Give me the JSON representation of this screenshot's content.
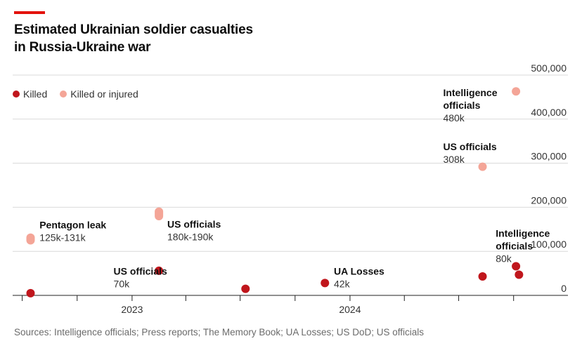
{
  "header": {
    "title_line1": "Estimated Ukrainian soldier casualties",
    "title_line2": "in Russia-Ukraine war"
  },
  "legend": {
    "killed_label": "Killed",
    "injured_label": "Killed or injured"
  },
  "source": "Sources: Intelligence officials; Press reports; The Memory Book; UA Losses; US DoD; US officials",
  "colors": {
    "accent": "#e3120b",
    "killed": "#c0161c",
    "injured": "#f4a597",
    "grid": "#d9d9d9",
    "axis": "#222222"
  },
  "chart_data": {
    "type": "scatter",
    "title": "Estimated Ukrainian soldier casualties in Russia-Ukraine war",
    "ylim": [
      0,
      500000
    ],
    "yticks": [
      {
        "value": 0,
        "label": "0"
      },
      {
        "value": 100000,
        "label": "100,000"
      },
      {
        "value": 200000,
        "label": "200,000"
      },
      {
        "value": 300000,
        "label": "300,000"
      },
      {
        "value": 400000,
        "label": "400,000"
      },
      {
        "value": 500000,
        "label": "500,000"
      }
    ],
    "xlim": [
      "2022-06-15",
      "2024-12-31"
    ],
    "xticks": [
      {
        "date": "2022-07-01",
        "label": ""
      },
      {
        "date": "2022-10-01",
        "label": ""
      },
      {
        "date": "2023-01-01",
        "label": "2023"
      },
      {
        "date": "2023-04-01",
        "label": ""
      },
      {
        "date": "2023-07-01",
        "label": ""
      },
      {
        "date": "2023-10-01",
        "label": ""
      },
      {
        "date": "2024-01-01",
        "label": "2024"
      },
      {
        "date": "2024-04-01",
        "label": ""
      },
      {
        "date": "2024-07-01",
        "label": ""
      },
      {
        "date": "2024-10-01",
        "label": ""
      }
    ],
    "grid": true,
    "legend_position": "top-left",
    "series": [
      {
        "name": "Killed",
        "points": [
          {
            "date": "2022-07-15",
            "value": 5000
          },
          {
            "date": "2023-02-15",
            "value": 56000
          },
          {
            "date": "2023-07-10",
            "value": 15000
          },
          {
            "date": "2023-11-20",
            "value": 28000
          },
          {
            "date": "2024-08-10",
            "value": 43000
          },
          {
            "date": "2024-10-05",
            "value": 66000
          },
          {
            "date": "2024-10-10",
            "value": 47000
          }
        ]
      },
      {
        "name": "Killed or injured",
        "points": [
          {
            "date": "2022-07-15",
            "value": 125000,
            "high": 131000
          },
          {
            "date": "2023-02-15",
            "value": 180000,
            "high": 190000
          },
          {
            "date": "2024-08-10",
            "value": 292000
          },
          {
            "date": "2024-10-05",
            "value": 463000
          }
        ]
      }
    ],
    "annotations": [
      {
        "title": "Pentagon leak",
        "value": "125k-131k",
        "date": "2022-07-30",
        "y": 152000
      },
      {
        "title": "US officials",
        "value": "180k-190k",
        "date": "2023-03-01",
        "y": 154000
      },
      {
        "title": "US officials",
        "value": "70k",
        "date": "2022-12-01",
        "y": 47000
      },
      {
        "title": "UA Losses",
        "value": "42k",
        "date": "2023-12-05",
        "y": 47000
      },
      {
        "title": "Intelligence officials",
        "value": "480k",
        "date": "2024-06-05",
        "y": 452000
      },
      {
        "title": "US officials",
        "value": "308k",
        "date": "2024-06-05",
        "y": 330000
      },
      {
        "title": "Intelligence officials",
        "value": "80k",
        "date": "2024-09-01",
        "y": 133000
      }
    ]
  }
}
